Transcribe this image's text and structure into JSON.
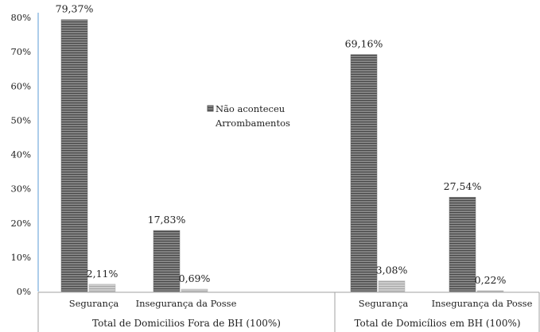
{
  "chart_data": {
    "type": "bar",
    "title": "",
    "xlabel": "",
    "ylabel": "",
    "ylim": [
      0,
      80
    ],
    "yticks": [
      "0%",
      "10%",
      "20%",
      "30%",
      "40%",
      "50%",
      "60%",
      "70%",
      "80%"
    ],
    "grid": false,
    "legend_position": "center",
    "groups": [
      {
        "label": "Total de Domicilios Fora de BH (100%)",
        "categories": [
          "Segurança",
          "Insegurança da Posse"
        ]
      },
      {
        "label": "Total de Domicílios em BH (100%)",
        "categories": [
          "Segurança",
          "Insegurança da Posse"
        ]
      }
    ],
    "series": [
      {
        "name": "Não aconteceu",
        "color": "#6e6e6e",
        "values": [
          79.37,
          17.83,
          69.16,
          27.54
        ],
        "labels": [
          "79,37%",
          "17,83%",
          "69,16%",
          "27,54%"
        ]
      },
      {
        "name": "Arrombamentos",
        "color": "#b5b5b5",
        "values": [
          2.11,
          0.69,
          3.08,
          0.22
        ],
        "labels": [
          "2,11%",
          "0,69%",
          "3,08%",
          "0,22%"
        ]
      }
    ]
  }
}
